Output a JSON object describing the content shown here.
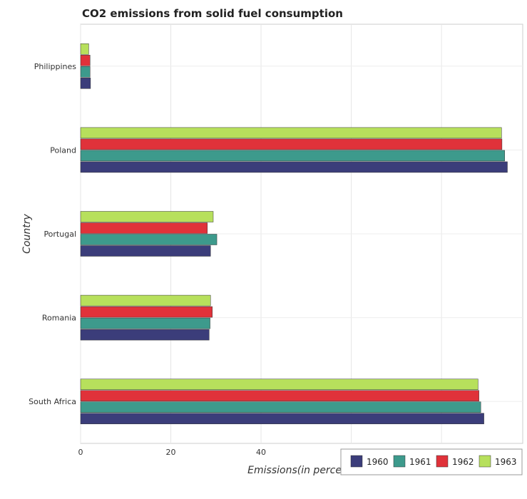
{
  "chart_data": {
    "type": "bar",
    "orientation": "horizontal",
    "title": "CO2 emissions from solid fuel consumption",
    "xlabel": "Emissions(in percent)",
    "ylabel": "Country",
    "xlim": [
      0,
      98
    ],
    "xticks": [
      0,
      20,
      40,
      60,
      80
    ],
    "grid": true,
    "legend_position": "bottom-right",
    "categories": [
      "Philippines",
      "Poland",
      "Portugal",
      "Romania",
      "South Africa"
    ],
    "series": [
      {
        "name": "1960",
        "color": "#3b3d7a",
        "values": [
          2.2,
          94.6,
          28.8,
          28.5,
          89.4
        ]
      },
      {
        "name": "1961",
        "color": "#3d9a8c",
        "values": [
          2.1,
          94.0,
          30.2,
          28.7,
          88.7
        ]
      },
      {
        "name": "1962",
        "color": "#e0323a",
        "values": [
          2.1,
          93.4,
          28.1,
          29.2,
          88.3
        ]
      },
      {
        "name": "1963",
        "color": "#b7e05c",
        "values": [
          1.8,
          93.3,
          29.4,
          28.8,
          88.1
        ]
      }
    ]
  }
}
